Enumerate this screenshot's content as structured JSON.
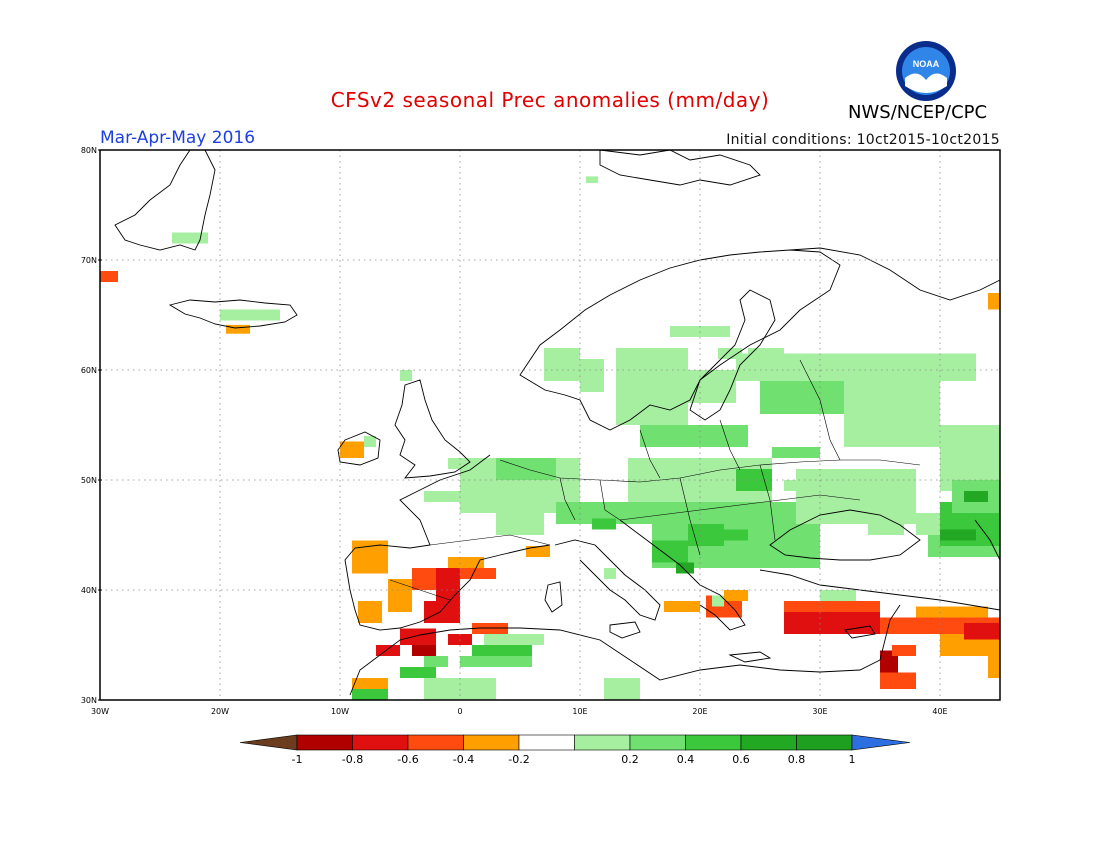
{
  "title": "CFSv2 seasonal Prec anomalies (mm/day)",
  "season": "Mar-Apr-May 2016",
  "initial_conditions": "Initial conditions: 10ct2015-10ct2015",
  "agency": "NWS/NCEP/CPC",
  "logo_text": "NOAA",
  "colors": {
    "-1": "#6b3d1e",
    "-0.8": "#b00000",
    "-0.6": "#e01010",
    "-0.4": "#ff4a10",
    "-0.2": "#ffa000",
    "0": "#ffffff",
    "0.2": "#a6eea0",
    "0.4": "#70e070",
    "0.6": "#3cc83c",
    "0.8": "#22a822",
    "1": "#1f9f1f",
    "1+": "#2d6fe0"
  },
  "lat_labels": [
    "80N",
    "70N",
    "60N",
    "50N",
    "40N",
    "30N"
  ],
  "lon_labels": [
    "30W",
    "20W",
    "10W",
    "0",
    "10E",
    "20E",
    "30E",
    "40E"
  ],
  "colorbar_labels": [
    "-1",
    "-0.8",
    "-0.6",
    "-0.4",
    "-0.2",
    "0.2",
    "0.4",
    "0.6",
    "0.8",
    "1"
  ],
  "map_data": {
    "lon_range": [
      -30,
      45
    ],
    "lat_range": [
      30,
      80
    ],
    "cell_degrees": 1,
    "anomaly_cells": [
      {
        "lon": -30,
        "lat": 68,
        "w": 1.5,
        "h": 1,
        "class": "-0.4"
      },
      {
        "lon": -24,
        "lat": 71.5,
        "w": 3,
        "h": 1,
        "class": "0.2"
      },
      {
        "lon": -20,
        "lat": 64.5,
        "w": 5,
        "h": 1,
        "class": "0.2"
      },
      {
        "lon": -19.5,
        "lat": 63.3,
        "w": 2,
        "h": 0.8,
        "class": "-0.2"
      },
      {
        "lon": -10,
        "lat": 52,
        "w": 2,
        "h": 1.5,
        "class": "-0.2"
      },
      {
        "lon": -9,
        "lat": 41.5,
        "w": 3,
        "h": 3,
        "class": "-0.2"
      },
      {
        "lon": -6,
        "lat": 38,
        "w": 2,
        "h": 3,
        "class": "-0.2"
      },
      {
        "lon": -8.5,
        "lat": 37,
        "w": 2,
        "h": 2,
        "class": "-0.2"
      },
      {
        "lon": -4,
        "lat": 40,
        "w": 4,
        "h": 2,
        "class": "-0.4"
      },
      {
        "lon": -2,
        "lat": 39,
        "w": 2,
        "h": 3,
        "class": "-0.6"
      },
      {
        "lon": -3,
        "lat": 37,
        "w": 3,
        "h": 2,
        "class": "-0.6"
      },
      {
        "lon": 0,
        "lat": 41,
        "w": 3,
        "h": 1,
        "class": "-0.4"
      },
      {
        "lon": -1,
        "lat": 42,
        "w": 3,
        "h": 1,
        "class": "-0.2"
      },
      {
        "lon": 5.5,
        "lat": 43,
        "w": 2,
        "h": 1,
        "class": "-0.2"
      },
      {
        "lon": -5,
        "lat": 35,
        "w": 3,
        "h": 1.5,
        "class": "-0.6"
      },
      {
        "lon": -7,
        "lat": 34,
        "w": 2,
        "h": 1,
        "class": "-0.6"
      },
      {
        "lon": -4,
        "lat": 34,
        "w": 2,
        "h": 1,
        "class": "-0.8"
      },
      {
        "lon": -1,
        "lat": 35,
        "w": 2,
        "h": 1,
        "class": "-0.6"
      },
      {
        "lon": 1,
        "lat": 36,
        "w": 3,
        "h": 1,
        "class": "-0.4"
      },
      {
        "lon": 2,
        "lat": 35,
        "w": 5,
        "h": 1,
        "class": "0.2"
      },
      {
        "lon": 1,
        "lat": 34,
        "w": 5,
        "h": 1,
        "class": "0.6"
      },
      {
        "lon": 0,
        "lat": 33,
        "w": 6,
        "h": 1,
        "class": "0.4"
      },
      {
        "lon": -3,
        "lat": 33,
        "w": 2,
        "h": 1,
        "class": "0.4"
      },
      {
        "lon": -5,
        "lat": 32,
        "w": 3,
        "h": 1,
        "class": "0.6"
      },
      {
        "lon": -9,
        "lat": 31,
        "w": 3,
        "h": 1,
        "class": "-0.2"
      },
      {
        "lon": -9,
        "lat": 30,
        "w": 3,
        "h": 1,
        "class": "0.6"
      },
      {
        "lon": -3,
        "lat": 30,
        "w": 6,
        "h": 2,
        "class": "0.2"
      },
      {
        "lon": 12,
        "lat": 30,
        "w": 3,
        "h": 2,
        "class": "0.2"
      },
      {
        "lon": 17,
        "lat": 38,
        "w": 3,
        "h": 1,
        "class": "-0.2"
      },
      {
        "lon": 20.5,
        "lat": 37.5,
        "w": 3,
        "h": 2,
        "class": "-0.4"
      },
      {
        "lon": 22,
        "lat": 39,
        "w": 2,
        "h": 1,
        "class": "-0.2"
      },
      {
        "lon": 27,
        "lat": 36,
        "w": 8,
        "h": 2,
        "class": "-0.6"
      },
      {
        "lon": 27,
        "lat": 38,
        "w": 8,
        "h": 1,
        "class": "-0.4"
      },
      {
        "lon": 30,
        "lat": 39,
        "w": 3,
        "h": 1,
        "class": "-0.2"
      },
      {
        "lon": 35,
        "lat": 36,
        "w": 10,
        "h": 1.5,
        "class": "-0.4"
      },
      {
        "lon": 38,
        "lat": 37.5,
        "w": 6,
        "h": 1,
        "class": "-0.2"
      },
      {
        "lon": 40,
        "lat": 34,
        "w": 5,
        "h": 2,
        "class": "-0.2"
      },
      {
        "lon": 42,
        "lat": 35.5,
        "w": 3,
        "h": 1.5,
        "class": "-0.6"
      },
      {
        "lon": 35,
        "lat": 32.5,
        "w": 1.5,
        "h": 2,
        "class": "-0.8"
      },
      {
        "lon": 36,
        "lat": 34,
        "w": 2,
        "h": 1,
        "class": "-0.4"
      },
      {
        "lon": 35,
        "lat": 31,
        "w": 3,
        "h": 1.5,
        "class": "-0.4"
      },
      {
        "lon": 44,
        "lat": 32,
        "w": 1,
        "h": 2,
        "class": "-0.2"
      },
      {
        "lon": 44,
        "lat": 65.5,
        "w": 1,
        "h": 1.5,
        "class": "-0.2"
      },
      {
        "lon": -5,
        "lat": 59,
        "w": 1,
        "h": 1,
        "class": "0.2"
      },
      {
        "lon": -8,
        "lat": 53,
        "w": 1,
        "h": 1,
        "class": "0.2"
      },
      {
        "lon": 7,
        "lat": 59,
        "w": 3,
        "h": 3,
        "class": "0.2"
      },
      {
        "lon": 10,
        "lat": 58,
        "w": 2,
        "h": 3,
        "class": "0.2"
      },
      {
        "lon": 13,
        "lat": 55,
        "w": 6,
        "h": 7,
        "class": "0.2"
      },
      {
        "lon": 19,
        "lat": 57,
        "w": 4,
        "h": 3,
        "class": "0.2"
      },
      {
        "lon": 17.5,
        "lat": 63,
        "w": 5,
        "h": 1,
        "class": "0.2"
      },
      {
        "lon": 21.5,
        "lat": 61,
        "w": 2,
        "h": 1,
        "class": "0.2"
      },
      {
        "lon": 23,
        "lat": 59,
        "w": 20,
        "h": 2.5,
        "class": "0.2"
      },
      {
        "lon": 25,
        "lat": 56,
        "w": 7,
        "h": 3,
        "class": "0.4"
      },
      {
        "lon": 32,
        "lat": 53,
        "w": 8,
        "h": 6,
        "class": "0.2"
      },
      {
        "lon": 40,
        "lat": 49,
        "w": 5,
        "h": 6,
        "class": "0.2"
      },
      {
        "lon": 15,
        "lat": 53,
        "w": 9,
        "h": 2,
        "class": "0.4"
      },
      {
        "lon": 0,
        "lat": 47,
        "w": 10,
        "h": 5,
        "class": "0.2"
      },
      {
        "lon": -3,
        "lat": 48,
        "w": 4,
        "h": 1,
        "class": "0.2"
      },
      {
        "lon": -1,
        "lat": 51,
        "w": 3,
        "h": 1,
        "class": "0.2"
      },
      {
        "lon": 3,
        "lat": 50,
        "w": 5,
        "h": 2,
        "class": "0.4"
      },
      {
        "lon": 3,
        "lat": 45,
        "w": 4,
        "h": 2,
        "class": "0.2"
      },
      {
        "lon": 8,
        "lat": 46,
        "w": 8,
        "h": 2,
        "class": "0.4"
      },
      {
        "lon": 11,
        "lat": 45.5,
        "w": 2,
        "h": 1,
        "class": "0.6"
      },
      {
        "lon": 14,
        "lat": 48,
        "w": 12,
        "h": 4,
        "class": "0.2"
      },
      {
        "lon": 16,
        "lat": 42,
        "w": 14,
        "h": 6,
        "class": "0.4"
      },
      {
        "lon": 19,
        "lat": 44,
        "w": 3,
        "h": 2,
        "class": "0.6"
      },
      {
        "lon": 16,
        "lat": 42.5,
        "w": 3,
        "h": 2,
        "class": "0.6"
      },
      {
        "lon": 18,
        "lat": 41.5,
        "w": 1.5,
        "h": 1,
        "class": "0.8"
      },
      {
        "lon": 22,
        "lat": 44.5,
        "w": 2,
        "h": 1,
        "class": "0.6"
      },
      {
        "lon": 28,
        "lat": 46,
        "w": 10,
        "h": 5,
        "class": "0.2"
      },
      {
        "lon": 23,
        "lat": 49,
        "w": 3,
        "h": 2,
        "class": "0.6"
      },
      {
        "lon": 26,
        "lat": 52,
        "w": 4,
        "h": 1,
        "class": "0.4"
      },
      {
        "lon": 38,
        "lat": 45,
        "w": 7,
        "h": 2,
        "class": "0.2"
      },
      {
        "lon": 39,
        "lat": 43,
        "w": 6,
        "h": 2,
        "class": "0.4"
      },
      {
        "lon": 40,
        "lat": 44,
        "w": 5,
        "h": 4,
        "class": "0.6"
      },
      {
        "lon": 41,
        "lat": 47,
        "w": 4,
        "h": 3,
        "class": "0.4"
      },
      {
        "lon": 42,
        "lat": 48,
        "w": 2,
        "h": 1,
        "class": "0.8"
      },
      {
        "lon": 40,
        "lat": 44.5,
        "w": 3,
        "h": 1,
        "class": "0.8"
      },
      {
        "lon": 27,
        "lat": 49,
        "w": 3,
        "h": 1,
        "class": "0.2"
      },
      {
        "lon": 31,
        "lat": 49,
        "w": 3,
        "h": 2,
        "class": "0.2"
      },
      {
        "lon": 34,
        "lat": 45,
        "w": 3,
        "h": 2,
        "class": "0.2"
      },
      {
        "lon": 30,
        "lat": 39,
        "w": 3,
        "h": 1,
        "class": "0.2"
      },
      {
        "lon": 12,
        "lat": 41,
        "w": 1,
        "h": 1,
        "class": "0.2"
      },
      {
        "lon": 21,
        "lat": 38.5,
        "w": 1,
        "h": 1,
        "class": "0.2"
      },
      {
        "lon": 24,
        "lat": 61,
        "w": 3,
        "h": 1,
        "class": "0.2"
      },
      {
        "lon": 10.5,
        "lat": 77,
        "w": 1,
        "h": 0.6,
        "class": "0.2"
      }
    ]
  }
}
